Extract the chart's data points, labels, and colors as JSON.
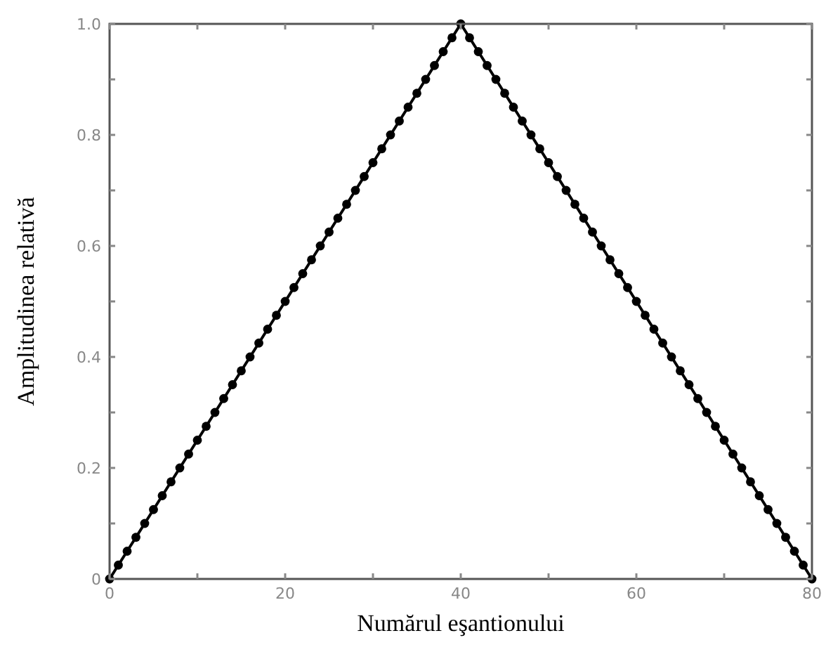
{
  "chart_data": {
    "type": "line",
    "xlabel": "Numărul eşantionului",
    "ylabel": "Amplitudinea relativă",
    "marker": "circle",
    "line_style": "solid",
    "xlim": [
      0,
      80
    ],
    "ylim": [
      0,
      1
    ],
    "xticks": [
      0,
      {
        "value": 10,
        "label": null
      },
      20,
      {
        "value": 30,
        "label": null
      },
      40,
      {
        "value": 50,
        "label": null
      },
      60,
      {
        "value": 70,
        "label": null
      },
      80
    ],
    "yticks": [
      0,
      {
        "value": 0.1,
        "label": null
      },
      0.2,
      {
        "value": 0.3,
        "label": null
      },
      0.4,
      {
        "value": 0.5,
        "label": null
      },
      0.6,
      {
        "value": 0.7,
        "label": null
      },
      0.8,
      {
        "value": 0.9,
        "label": null
      },
      {
        "value": 1,
        "label": "1.0"
      }
    ],
    "x": [
      0,
      1,
      2,
      3,
      4,
      5,
      6,
      7,
      8,
      9,
      10,
      11,
      12,
      13,
      14,
      15,
      16,
      17,
      18,
      19,
      20,
      21,
      22,
      23,
      24,
      25,
      26,
      27,
      28,
      29,
      30,
      31,
      32,
      33,
      34,
      35,
      36,
      37,
      38,
      39,
      40,
      41,
      42,
      43,
      44,
      45,
      46,
      47,
      48,
      49,
      50,
      51,
      52,
      53,
      54,
      55,
      56,
      57,
      58,
      59,
      60,
      61,
      62,
      63,
      64,
      65,
      66,
      67,
      68,
      69,
      70,
      71,
      72,
      73,
      74,
      75,
      76,
      77,
      78,
      79,
      80
    ],
    "series": [
      {
        "color": "#000000",
        "values": [
          0,
          0.025,
          0.05,
          0.075,
          0.1,
          0.125,
          0.15,
          0.175,
          0.2,
          0.225,
          0.25,
          0.275,
          0.3,
          0.325,
          0.35,
          0.375,
          0.4,
          0.425,
          0.45,
          0.475,
          0.5,
          0.525,
          0.55,
          0.575,
          0.6,
          0.625,
          0.65,
          0.675,
          0.7,
          0.725,
          0.75,
          0.775,
          0.8,
          0.825,
          0.85,
          0.875,
          0.9,
          0.925,
          0.95,
          0.975,
          1,
          0.975,
          0.95,
          0.925,
          0.9,
          0.875,
          0.85,
          0.825,
          0.8,
          0.775,
          0.75,
          0.725,
          0.7,
          0.675,
          0.65,
          0.625,
          0.6,
          0.575,
          0.55,
          0.525,
          0.5,
          0.475,
          0.45,
          0.425,
          0.4,
          0.375,
          0.35,
          0.325,
          0.3,
          0.275,
          0.25,
          0.225,
          0.2,
          0.175,
          0.15,
          0.125,
          0.1,
          0.075,
          0.05,
          0.025,
          0
        ]
      }
    ]
  }
}
